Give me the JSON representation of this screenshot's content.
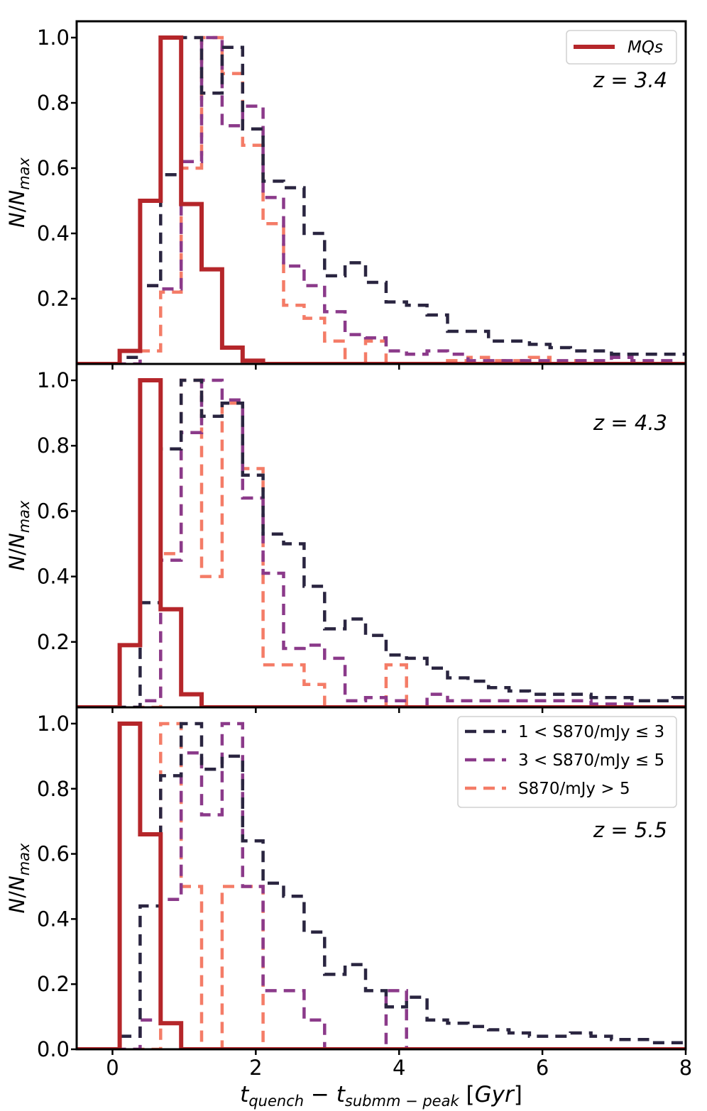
{
  "colors": {
    "mqs": "#b5262a",
    "s1": "#2a2540",
    "s2": "#8b3a8a",
    "s3": "#f47c67"
  },
  "chart_data": {
    "type": "step-histogram",
    "xlabel": "t_quench − t_submm−peak [Gyr]",
    "ylabel": "N/N_max",
    "xlim": [
      -0.5,
      8
    ],
    "ylim": [
      0,
      1.05
    ],
    "xticks": [
      0,
      2,
      4,
      6,
      8
    ],
    "xtick_labels": [
      "0",
      "2",
      "4",
      "6",
      "8"
    ],
    "bin_width": 0.286,
    "bin_start": 0.1,
    "legend_mqs": "MQs",
    "legend_series": [
      "1 < S870/mJy ≤ 3",
      "3 < S870/mJy ≤ 5",
      "S870/mJy > 5"
    ],
    "panels": [
      {
        "z_label": "z = 3.4",
        "yticks": [
          0.2,
          0.4,
          0.6,
          0.8,
          1.0
        ],
        "ytick_labels": [
          "0.2",
          "0.4",
          "0.6",
          "0.8",
          "1.0"
        ],
        "legend": "mqs",
        "series": {
          "mqs": [
            0.04,
            0.5,
            1.0,
            0.49,
            0.29,
            0.05,
            0.01,
            0,
            0,
            0,
            0,
            0,
            0,
            0,
            0,
            0,
            0,
            0,
            0,
            0,
            0,
            0,
            0,
            0,
            0,
            0,
            0,
            0
          ],
          "s1": [
            0.02,
            0.24,
            0.58,
            1.0,
            0.83,
            0.97,
            0.72,
            0.56,
            0.54,
            0.4,
            0.27,
            0.31,
            0.25,
            0.19,
            0.18,
            0.15,
            0.1,
            0.1,
            0.07,
            0.07,
            0.06,
            0.05,
            0.04,
            0.04,
            0.03,
            0.03,
            0.03,
            0.03
          ],
          "s2": [
            0.0,
            0.24,
            0.23,
            0.62,
            1.0,
            0.73,
            0.79,
            0.51,
            0.3,
            0.24,
            0.16,
            0.09,
            0.08,
            0.04,
            0.03,
            0.04,
            0.03,
            0.01,
            0.01,
            0.01,
            0.01,
            0.01,
            0.01,
            0.01,
            0.02,
            0.01,
            0.01,
            0.0
          ],
          "s3": [
            0.0,
            0.04,
            0.22,
            0.6,
            1.0,
            0.89,
            0.67,
            0.43,
            0.18,
            0.14,
            0.07,
            0.0,
            0.07,
            0.0,
            0.0,
            0.0,
            0.01,
            0.02,
            0.01,
            0.01,
            0.02,
            0.0,
            0.01,
            0.0,
            0.0,
            0.0,
            0.0,
            0.0
          ]
        }
      },
      {
        "z_label": "z = 4.3",
        "yticks": [
          0.2,
          0.4,
          0.6,
          0.8,
          1.0
        ],
        "ytick_labels": [
          "0.2",
          "0.4",
          "0.6",
          "0.8",
          "1.0"
        ],
        "legend": "none",
        "series": {
          "mqs": [
            0.19,
            1.0,
            0.3,
            0.04,
            0.0,
            0,
            0,
            0,
            0,
            0,
            0,
            0,
            0,
            0,
            0,
            0,
            0,
            0,
            0,
            0,
            0,
            0,
            0,
            0,
            0,
            0,
            0,
            0
          ],
          "s1": [
            0.0,
            0.32,
            0.79,
            1.0,
            0.89,
            0.93,
            0.71,
            0.53,
            0.5,
            0.37,
            0.24,
            0.27,
            0.22,
            0.16,
            0.15,
            0.12,
            0.09,
            0.08,
            0.06,
            0.05,
            0.04,
            0.04,
            0.04,
            0.03,
            0.03,
            0.02,
            0.02,
            0.03
          ],
          "s2": [
            0.0,
            0.02,
            0.45,
            0.84,
            1.0,
            0.94,
            0.64,
            0.41,
            0.18,
            0.19,
            0.15,
            0.02,
            0.03,
            0.02,
            0.0,
            0.04,
            0.02,
            0.02,
            0.02,
            0.02,
            0.02,
            0.02,
            0.02,
            0.01,
            0.01,
            0.0,
            0.0,
            0.0
          ],
          "s3": [
            0.0,
            0.0,
            0.47,
            1.0,
            0.4,
            0.93,
            0.73,
            0.13,
            0.13,
            0.07,
            0.0,
            0.0,
            0.0,
            0.13,
            0.0,
            0.0,
            0.0,
            0.0,
            0.0,
            0.0,
            0.0,
            0.0,
            0.0,
            0.0,
            0.0,
            0.0,
            0.0,
            0.0
          ]
        }
      },
      {
        "z_label": "z = 5.5",
        "yticks": [
          0.0,
          0.2,
          0.4,
          0.6,
          0.8,
          1.0
        ],
        "ytick_labels": [
          "0.0",
          "0.2",
          "0.4",
          "0.6",
          "0.8",
          "1.0"
        ],
        "legend": "series",
        "series": {
          "mqs": [
            1.0,
            0.66,
            0.08,
            0.0,
            0,
            0,
            0,
            0,
            0,
            0,
            0,
            0,
            0,
            0,
            0,
            0,
            0,
            0,
            0,
            0,
            0,
            0,
            0,
            0,
            0,
            0,
            0,
            0
          ],
          "s1": [
            0.04,
            0.44,
            0.84,
            1.0,
            0.86,
            0.9,
            0.64,
            0.51,
            0.47,
            0.36,
            0.23,
            0.26,
            0.18,
            0.13,
            0.16,
            0.09,
            0.08,
            0.07,
            0.06,
            0.05,
            0.04,
            0.04,
            0.05,
            0.04,
            0.03,
            0.03,
            0.02,
            0.02
          ],
          "s2": [
            0.0,
            0.09,
            0.46,
            0.91,
            0.72,
            1.0,
            0.5,
            0.18,
            0.18,
            0.09,
            0.0,
            0.0,
            0.0,
            0.18,
            0.0,
            0.0,
            0.0,
            0.0,
            0.0,
            0.0,
            0.0,
            0.0,
            0.0,
            0.0,
            0.0,
            0.0,
            0.0,
            0.0
          ],
          "s3": [
            0.0,
            0.0,
            1.0,
            0.5,
            0.0,
            0.5,
            0.5,
            0.0,
            0.0,
            0.0,
            0.0,
            0.0,
            0.0,
            0.0,
            0.0,
            0.0,
            0.0,
            0.0,
            0.0,
            0.0,
            0.0,
            0.0,
            0.0,
            0.0,
            0.0,
            0.0,
            0.0,
            0.0
          ]
        }
      }
    ]
  }
}
